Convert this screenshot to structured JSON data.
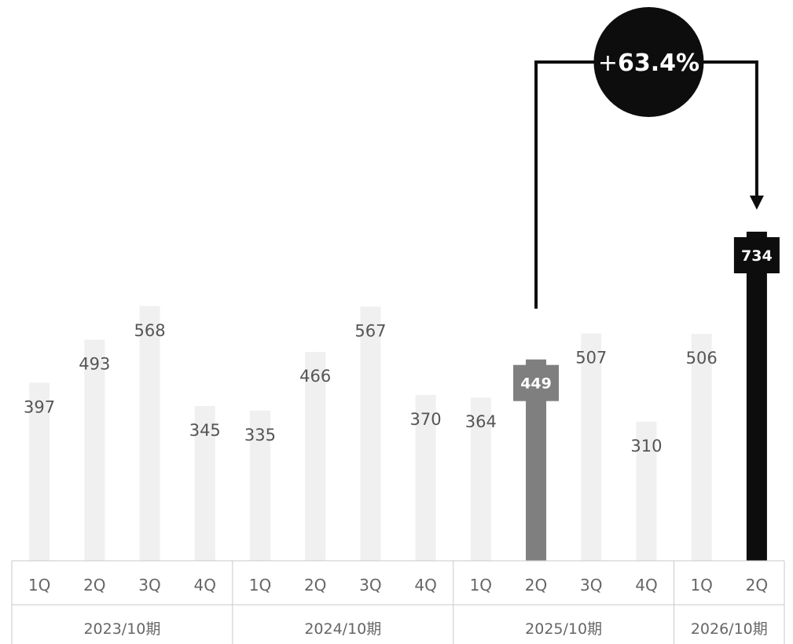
{
  "chart_data": {
    "type": "bar",
    "title": "",
    "xlabel": "",
    "ylabel": "",
    "ylim": [
      0,
      900
    ],
    "grid": false,
    "categories": [
      "1Q",
      "2Q",
      "3Q",
      "4Q",
      "1Q",
      "2Q",
      "3Q",
      "4Q",
      "1Q",
      "2Q",
      "3Q",
      "4Q",
      "1Q",
      "2Q"
    ],
    "values": [
      397,
      493,
      568,
      345,
      335,
      466,
      567,
      370,
      364,
      449,
      507,
      310,
      506,
      734
    ],
    "value_labels": [
      "397",
      "493",
      "568",
      "345",
      "335",
      "466",
      "567",
      "370",
      "364",
      "449",
      "507",
      "310",
      "506",
      "734"
    ],
    "periods": [
      {
        "label": "2023/10期",
        "count": 4
      },
      {
        "label": "2024/10期",
        "count": 4
      },
      {
        "label": "2025/10期",
        "count": 4
      },
      {
        "label": "2026/10期",
        "count": 2
      }
    ],
    "highlight": {
      "from_index": 9,
      "to_index": 13,
      "growth_plus": "+",
      "growth_value": "63.4%"
    },
    "colors": {
      "bar": "#f0f0f0",
      "bar_prev": "#7f7f7f",
      "bar_current": "#0d0d0d",
      "axis": "#c9c9c9",
      "text": "#555555"
    }
  }
}
